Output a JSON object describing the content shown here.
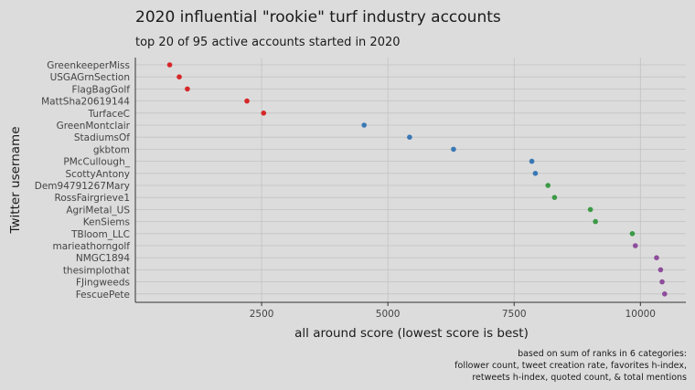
{
  "chart_data": {
    "type": "scatter",
    "title": "2020 influential \"rookie\" turf industry accounts",
    "subtitle": "top 20 of 95 active accounts started in 2020",
    "xlabel": "all around score (lowest score is best)",
    "ylabel": "Twitter username",
    "caption": [
      "based on sum of ranks in 6 categories:",
      "follower count, tweet creation rate, favorites h-index,",
      "retweets h-index, quoted count, & total mentions"
    ],
    "xlim": [
      0,
      10900
    ],
    "xticks": [
      2500,
      5000,
      7500,
      10000
    ],
    "xtick_labels": [
      "2500",
      "5000",
      "7500",
      "10000"
    ],
    "grid": true,
    "group_colors": [
      "#d62728",
      "#3a78b5",
      "#3c9a46",
      "#8e4d9b"
    ],
    "points": [
      {
        "name": "GreenkeeperMiss",
        "x": 680,
        "group": 0
      },
      {
        "name": "USGAGrnSection",
        "x": 870,
        "group": 0
      },
      {
        "name": "FlagBagGolf",
        "x": 1030,
        "group": 0
      },
      {
        "name": "MattSha20619144",
        "x": 2210,
        "group": 0
      },
      {
        "name": "TurfaceC",
        "x": 2540,
        "group": 0
      },
      {
        "name": "GreenMontclair",
        "x": 4530,
        "group": 1
      },
      {
        "name": "StadiumsOf",
        "x": 5430,
        "group": 1
      },
      {
        "name": "gkbtom",
        "x": 6300,
        "group": 1
      },
      {
        "name": "PMcCullough_",
        "x": 7850,
        "group": 1
      },
      {
        "name": "ScottyAntony",
        "x": 7920,
        "group": 1
      },
      {
        "name": "Dem94791267Mary",
        "x": 8170,
        "group": 2
      },
      {
        "name": "RossFairgrieve1",
        "x": 8300,
        "group": 2
      },
      {
        "name": "AgriMetal_US",
        "x": 9010,
        "group": 2
      },
      {
        "name": "KenSiems",
        "x": 9110,
        "group": 2
      },
      {
        "name": "TBloom_LLC",
        "x": 9840,
        "group": 2
      },
      {
        "name": "marieathorngolf",
        "x": 9900,
        "group": 3
      },
      {
        "name": "NMGC1894",
        "x": 10320,
        "group": 3
      },
      {
        "name": "thesimplothat",
        "x": 10400,
        "group": 3
      },
      {
        "name": "FJingweeds",
        "x": 10430,
        "group": 3
      },
      {
        "name": "FescuePete",
        "x": 10480,
        "group": 3
      }
    ]
  }
}
